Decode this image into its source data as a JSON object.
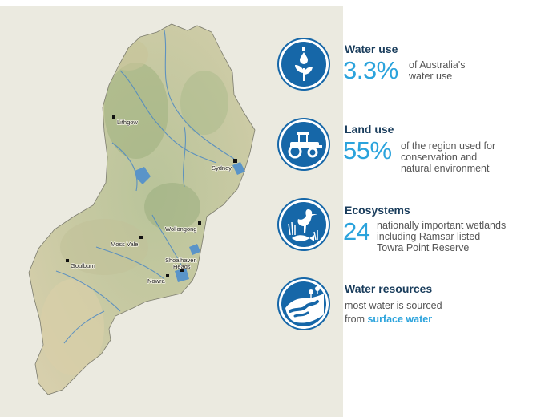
{
  "map": {
    "towns": [
      {
        "name": "Lithgow"
      },
      {
        "name": "Sydney"
      },
      {
        "name": "Wollongong"
      },
      {
        "name": "Moss Vale"
      },
      {
        "name": "Goulburn"
      },
      {
        "name": "Shoalhaven"
      },
      {
        "name": "Heads"
      },
      {
        "name": "Nowra"
      }
    ]
  },
  "stats": {
    "water_use": {
      "title": "Water use",
      "value": "3.3%",
      "desc_line1": "of Australia's",
      "desc_line2": "water use",
      "icon": "water-drop-plant-icon"
    },
    "land_use": {
      "title": "Land use",
      "value": "55%",
      "desc_line1": "of the region used for",
      "desc_line2": "conservation and",
      "desc_line3": "natural environment",
      "icon": "tractor-icon"
    },
    "ecosystems": {
      "title": "Ecosystems",
      "value": "24",
      "desc_line1": "nationally important wetlands",
      "desc_line2": "including Ramsar listed",
      "desc_line3": "Towra Point Reserve",
      "icon": "heron-fish-icon"
    },
    "water_resources": {
      "title": "Water resources",
      "desc_line1": "most water is sourced",
      "desc_line2_prefix": "from",
      "desc_line2_highlight": "surface water",
      "icon": "river-landscape-icon"
    }
  },
  "colors": {
    "icon_blue": "#1667a8",
    "accent": "#2ba3dc",
    "title": "#1a3d5c"
  }
}
